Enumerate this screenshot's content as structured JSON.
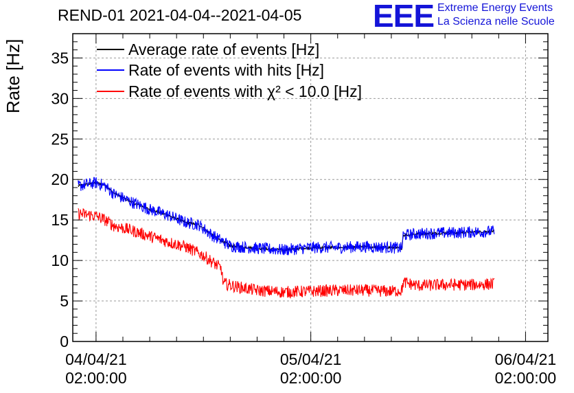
{
  "header": {
    "title": "REND-01 2021-04-04--2021-04-05",
    "logo_text": "EEE",
    "subtitle_line1": "Extreme Energy Events",
    "subtitle_line2": "La Scienza nelle Scuole"
  },
  "colors": {
    "average": "#000000",
    "hits": "#0000ff",
    "chi2": "#ff0000",
    "grid": "#999999",
    "logo": "#1414d8"
  },
  "chart_data": {
    "type": "line",
    "title": "REND-01 2021-04-04--2021-04-05",
    "xlabel": "",
    "ylabel": "Rate [Hz]",
    "ylim": [
      0,
      38
    ],
    "xlim_hours": [
      -2.6,
      50.5
    ],
    "y_ticks": [
      0,
      5,
      10,
      15,
      20,
      25,
      30,
      35
    ],
    "x_ticks": [
      {
        "hour": 0,
        "date": "04/04/21",
        "time": "02:00:00"
      },
      {
        "hour": 24,
        "date": "05/04/21",
        "time": "02:00:00"
      },
      {
        "hour": 48,
        "date": "06/04/21",
        "time": "02:00:00"
      }
    ],
    "grid": true,
    "legend_position": "top-left",
    "legend_entries": [
      "Average rate of events [Hz]",
      "Rate of events with hits [Hz]",
      "Rate of events with χ² < 10.0 [Hz]"
    ],
    "series": [
      {
        "name": "Average rate of events [Hz]",
        "color": "#000000",
        "hours": [
          -2.0,
          0.0,
          1.0,
          2.0,
          4.0,
          6.0,
          8.0,
          10.0,
          11.5,
          13.0,
          15.0,
          18.0,
          21.0,
          24.0,
          27.0,
          30.0,
          33.0,
          34.2,
          34.3,
          36.0,
          39.0,
          42.0,
          44.5
        ],
        "values": [
          19.2,
          19.6,
          19.3,
          18.3,
          17.2,
          16.3,
          15.6,
          14.7,
          14.4,
          13.1,
          11.8,
          11.5,
          11.3,
          11.6,
          11.6,
          11.7,
          11.6,
          11.5,
          13.1,
          13.3,
          13.4,
          13.5,
          13.6
        ]
      },
      {
        "name": "Rate of events with hits [Hz]",
        "color": "#0000ff",
        "hours": [
          -2.0,
          0.0,
          1.0,
          2.0,
          4.0,
          6.0,
          8.0,
          10.0,
          11.5,
          13.0,
          15.0,
          18.0,
          21.0,
          24.0,
          27.0,
          30.0,
          33.0,
          34.2,
          34.3,
          36.0,
          39.0,
          42.0,
          44.5
        ],
        "values": [
          19.2,
          19.6,
          19.2,
          18.2,
          17.2,
          16.3,
          15.6,
          14.7,
          14.4,
          13.1,
          11.8,
          11.5,
          11.3,
          11.6,
          11.6,
          11.7,
          11.6,
          11.5,
          13.1,
          13.3,
          13.4,
          13.5,
          13.6
        ]
      },
      {
        "name": "Rate of events with χ² < 10.0 [Hz]",
        "color": "#ff0000",
        "hours": [
          -2.0,
          0.0,
          1.0,
          2.0,
          4.0,
          6.0,
          8.0,
          10.0,
          12.0,
          14.0,
          14.2,
          15.5,
          18.0,
          21.0,
          24.0,
          27.0,
          30.0,
          33.0,
          34.2,
          34.3,
          36.0,
          39.0,
          42.0,
          44.5
        ],
        "values": [
          15.8,
          15.5,
          15.0,
          14.3,
          13.7,
          13.0,
          12.3,
          11.7,
          10.6,
          9.0,
          7.2,
          6.8,
          6.3,
          6.1,
          6.2,
          6.3,
          6.3,
          6.2,
          6.3,
          7.3,
          6.9,
          7.0,
          7.0,
          7.1
        ]
      }
    ]
  }
}
